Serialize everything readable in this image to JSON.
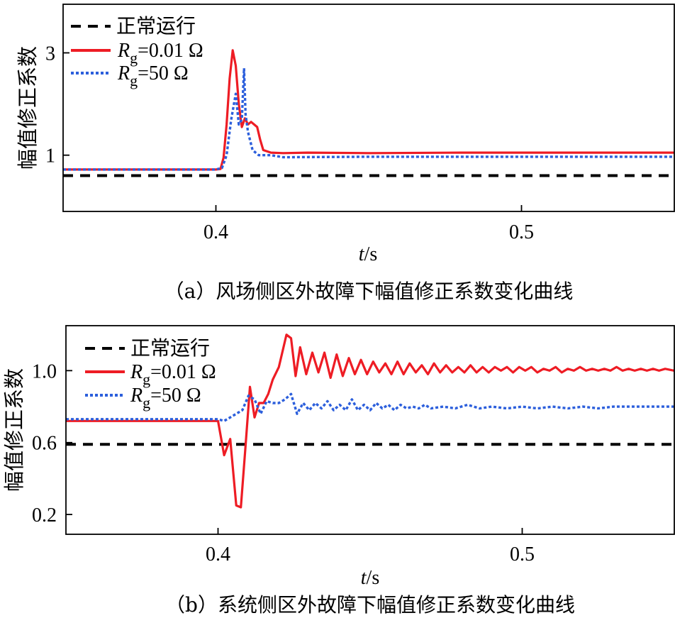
{
  "chart_data": [
    {
      "type": "line",
      "caption": "（a）风场侧区外故障下幅值修正系数变化曲线",
      "xlabel_var": "t",
      "xlabel_unit": "/s",
      "ylabel": "幅值修正系数",
      "xlim": [
        0.35,
        0.55
      ],
      "ylim": [
        -0.1,
        3.95
      ],
      "xticks": [
        {
          "value": 0.4,
          "label": "0.4"
        },
        {
          "value": 0.5,
          "label": "0.5"
        }
      ],
      "yticks": [
        {
          "value": 1,
          "label": "1"
        },
        {
          "value": 3,
          "label": "3"
        }
      ],
      "legend_position": "top-left",
      "series": [
        {
          "name": "正常运行",
          "style": "dash",
          "color": "#000000",
          "x": [
            0.35,
            0.55
          ],
          "y": [
            0.6,
            0.6
          ]
        },
        {
          "name": "R_g=0.01 Ω",
          "legend_main": "R",
          "legend_sub": "g",
          "legend_rest": "=0.01 Ω",
          "style": "solid",
          "color": "#ee1c24",
          "x": [
            0.35,
            0.4,
            0.4015,
            0.4025,
            0.4035,
            0.4045,
            0.4055,
            0.4065,
            0.4075,
            0.4085,
            0.4095,
            0.4105,
            0.4115,
            0.4125,
            0.4135,
            0.4145,
            0.4155,
            0.418,
            0.422,
            0.43,
            0.45,
            0.48,
            0.52,
            0.55
          ],
          "y": [
            0.72,
            0.72,
            0.73,
            0.95,
            1.6,
            2.5,
            3.05,
            2.75,
            2.0,
            1.55,
            1.72,
            1.6,
            1.65,
            1.6,
            1.55,
            1.3,
            1.1,
            1.05,
            1.04,
            1.05,
            1.04,
            1.05,
            1.05,
            1.05
          ]
        },
        {
          "name": "R_g=50 Ω",
          "legend_main": "R",
          "legend_sub": "g",
          "legend_rest": "=50 Ω",
          "style": "dot",
          "color": "#2c5fdc",
          "x": [
            0.35,
            0.4,
            0.402,
            0.4035,
            0.405,
            0.4065,
            0.4075,
            0.4085,
            0.4092,
            0.4097,
            0.4105,
            0.412,
            0.414,
            0.418,
            0.422,
            0.45,
            0.52,
            0.55
          ],
          "y": [
            0.72,
            0.72,
            0.75,
            1.0,
            1.7,
            2.2,
            1.6,
            1.7,
            2.7,
            1.8,
            1.45,
            1.1,
            1.0,
            1.0,
            0.96,
            0.97,
            0.97,
            0.97
          ]
        }
      ]
    },
    {
      "type": "line",
      "caption": "（b）系统侧区外故障下幅值修正系数变化曲线",
      "xlabel_var": "t",
      "xlabel_unit": "/s",
      "ylabel": "幅值修正系数",
      "xlim": [
        0.35,
        0.55
      ],
      "ylim": [
        0.09,
        1.25
      ],
      "xticks": [
        {
          "value": 0.4,
          "label": "0.4"
        },
        {
          "value": 0.5,
          "label": "0.5"
        }
      ],
      "yticks": [
        {
          "value": 0.2,
          "label": "0.2"
        },
        {
          "value": 0.6,
          "label": "0.6"
        },
        {
          "value": 1.0,
          "label": "1.0"
        }
      ],
      "legend_position": "top-left",
      "series": [
        {
          "name": "正常运行",
          "style": "dash",
          "color": "#000000",
          "x": [
            0.35,
            0.55
          ],
          "y": [
            0.59,
            0.59
          ]
        },
        {
          "name": "R_g=0.01 Ω",
          "legend_main": "R",
          "legend_sub": "g",
          "legend_rest": "=0.01 Ω",
          "style": "solid",
          "color": "#ee1c24",
          "x": [
            0.35,
            0.4,
            0.402,
            0.404,
            0.406,
            0.4075,
            0.409,
            0.4105,
            0.412,
            0.4135,
            0.415,
            0.4165,
            0.418,
            0.42,
            0.4225,
            0.424,
            0.4255,
            0.427,
            0.429,
            0.431,
            0.433,
            0.435,
            0.437,
            0.439,
            0.441,
            0.443,
            0.445,
            0.447,
            0.449,
            0.451,
            0.453,
            0.455,
            0.457,
            0.459,
            0.461,
            0.463,
            0.465,
            0.467,
            0.469,
            0.471,
            0.473,
            0.475,
            0.477,
            0.479,
            0.481,
            0.483,
            0.485,
            0.487,
            0.489,
            0.491,
            0.493,
            0.495,
            0.497,
            0.499,
            0.501,
            0.503,
            0.505,
            0.507,
            0.509,
            0.511,
            0.513,
            0.515,
            0.517,
            0.519,
            0.521,
            0.523,
            0.525,
            0.527,
            0.529,
            0.531,
            0.533,
            0.535,
            0.537,
            0.539,
            0.541,
            0.543,
            0.545,
            0.547,
            0.55
          ],
          "y": [
            0.72,
            0.72,
            0.53,
            0.62,
            0.25,
            0.24,
            0.57,
            0.91,
            0.74,
            0.82,
            0.82,
            0.87,
            0.95,
            1.02,
            1.2,
            1.18,
            0.97,
            1.13,
            0.98,
            1.1,
            0.99,
            1.1,
            0.96,
            1.09,
            0.97,
            1.07,
            0.98,
            1.06,
            0.98,
            1.05,
            0.99,
            1.04,
            0.98,
            1.05,
            0.98,
            1.04,
            0.99,
            1.03,
            0.98,
            1.04,
            0.99,
            1.03,
            0.99,
            1.02,
            0.99,
            1.03,
            0.99,
            1.02,
            0.99,
            1.02,
            1.0,
            1.02,
            0.99,
            1.02,
            1.0,
            1.02,
            0.99,
            1.01,
            1.0,
            1.02,
            0.99,
            1.01,
            1.0,
            1.02,
            1.0,
            1.01,
            1.0,
            1.01,
            1.0,
            1.02,
            1.0,
            1.01,
            1.0,
            1.01,
            1.0,
            1.01,
            1.0,
            1.01,
            1.0
          ]
        },
        {
          "name": "R_g=50 Ω",
          "legend_main": "R",
          "legend_sub": "g",
          "legend_rest": "=50 Ω",
          "style": "dot",
          "color": "#2c5fdc",
          "x": [
            0.35,
            0.4,
            0.402,
            0.404,
            0.406,
            0.408,
            0.41,
            0.412,
            0.414,
            0.416,
            0.418,
            0.42,
            0.422,
            0.424,
            0.426,
            0.428,
            0.43,
            0.432,
            0.434,
            0.436,
            0.438,
            0.44,
            0.442,
            0.444,
            0.446,
            0.448,
            0.45,
            0.452,
            0.454,
            0.456,
            0.458,
            0.46,
            0.462,
            0.464,
            0.466,
            0.468,
            0.47,
            0.474,
            0.478,
            0.482,
            0.486,
            0.49,
            0.495,
            0.5,
            0.505,
            0.51,
            0.515,
            0.52,
            0.525,
            0.53,
            0.535,
            0.54,
            0.545,
            0.55
          ],
          "y": [
            0.73,
            0.73,
            0.72,
            0.74,
            0.76,
            0.78,
            0.86,
            0.84,
            0.76,
            0.83,
            0.82,
            0.82,
            0.84,
            0.87,
            0.76,
            0.82,
            0.78,
            0.82,
            0.79,
            0.83,
            0.78,
            0.81,
            0.78,
            0.84,
            0.78,
            0.81,
            0.78,
            0.82,
            0.79,
            0.81,
            0.78,
            0.81,
            0.79,
            0.8,
            0.79,
            0.81,
            0.79,
            0.8,
            0.79,
            0.81,
            0.79,
            0.8,
            0.79,
            0.8,
            0.79,
            0.8,
            0.79,
            0.8,
            0.79,
            0.8,
            0.8,
            0.8,
            0.8,
            0.8
          ]
        }
      ]
    }
  ]
}
